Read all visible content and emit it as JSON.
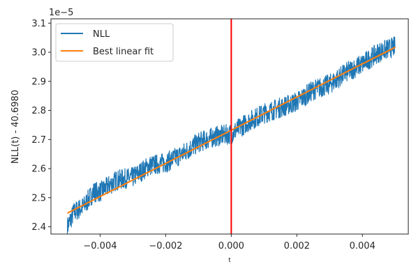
{
  "chart_data": {
    "type": "line",
    "xlabel": "t",
    "ylabel": "NLL(t) - 40.6980",
    "offset_label": "1e−5",
    "xlim": [
      -0.0055,
      0.0054
    ],
    "ylim": [
      2.375,
      3.115
    ],
    "x_ticks": [
      -0.004,
      -0.002,
      0.0,
      0.002,
      0.004
    ],
    "x_tick_labels": [
      "−0.004",
      "−0.002",
      "0.000",
      "0.002",
      "0.004"
    ],
    "y_ticks": [
      2.4,
      2.5,
      2.6,
      2.7,
      2.8,
      2.9,
      3.0,
      3.1
    ],
    "y_tick_labels": [
      "2.4",
      "2.5",
      "2.6",
      "2.7",
      "2.8",
      "2.9",
      "3.0",
      "3.1"
    ],
    "grid": false,
    "legend_position": "top-left",
    "vertical_line": {
      "x": 0.0,
      "color": "#ff0000"
    },
    "series": [
      {
        "name": "NLL",
        "color": "#1f77b4",
        "x_range": [
          -0.005,
          0.005
        ],
        "noisy": true,
        "noise_amplitude": 0.035,
        "points": [
          [
            -0.005,
            2.4
          ],
          [
            -0.0048,
            2.45
          ],
          [
            -0.0045,
            2.47
          ],
          [
            -0.0042,
            2.52
          ],
          [
            -0.004,
            2.52
          ],
          [
            -0.0035,
            2.56
          ],
          [
            -0.003,
            2.57
          ],
          [
            -0.0025,
            2.61
          ],
          [
            -0.002,
            2.62
          ],
          [
            -0.0015,
            2.65
          ],
          [
            -0.001,
            2.69
          ],
          [
            -0.0005,
            2.71
          ],
          [
            0.0,
            2.72
          ],
          [
            0.0005,
            2.76
          ],
          [
            0.001,
            2.79
          ],
          [
            0.0015,
            2.81
          ],
          [
            0.002,
            2.83
          ],
          [
            0.0025,
            2.87
          ],
          [
            0.003,
            2.89
          ],
          [
            0.0035,
            2.93
          ],
          [
            0.004,
            2.96
          ],
          [
            0.0045,
            3.0
          ],
          [
            0.005,
            3.02
          ]
        ]
      },
      {
        "name": "Best linear fit",
        "color": "#ff7f0e",
        "points": [
          [
            -0.005,
            2.447
          ],
          [
            0.005,
            3.017
          ]
        ]
      }
    ]
  }
}
